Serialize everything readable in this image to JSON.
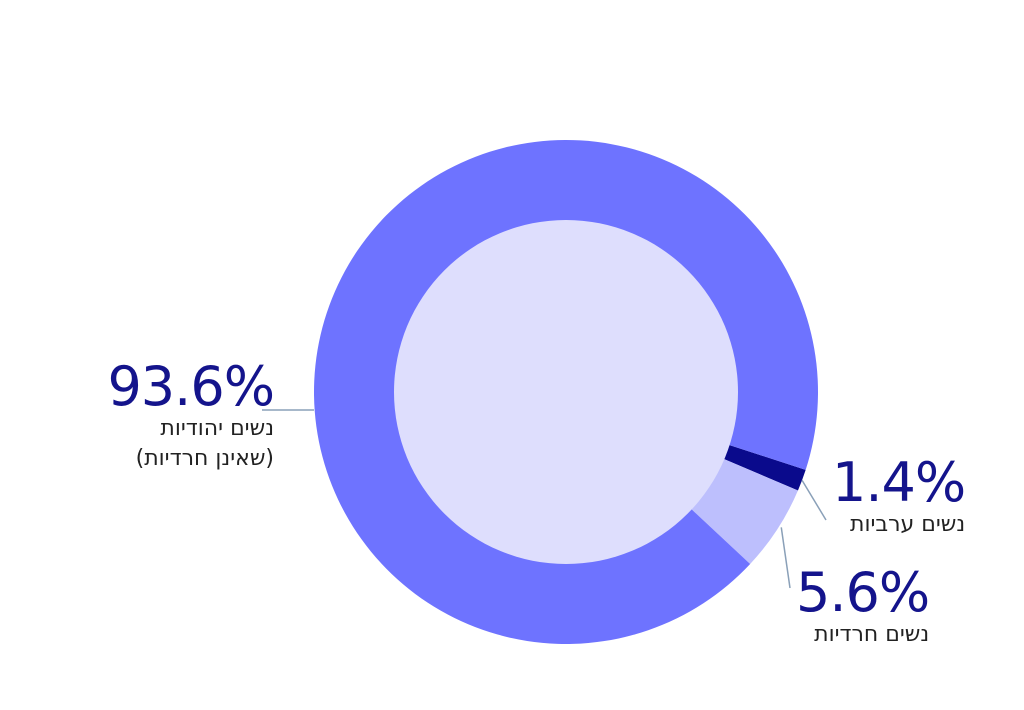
{
  "chart_data": {
    "type": "pie",
    "slices": [
      {
        "label": "נשים יהודיות",
        "label_line2": "(שאינן חרדיות)",
        "value": 93.6,
        "value_text": "93.6%",
        "color": "#6e73ff"
      },
      {
        "label": "נשים ערביות",
        "value": 1.4,
        "value_text": "1.4%",
        "color": "#0a0a8c"
      },
      {
        "label": "נשים חרדיות",
        "value": 5.6,
        "value_text": "5.6%",
        "color": "#bdbffd"
      }
    ],
    "inner_color": "#dedefd",
    "leader_color": "#8aa0b8"
  }
}
